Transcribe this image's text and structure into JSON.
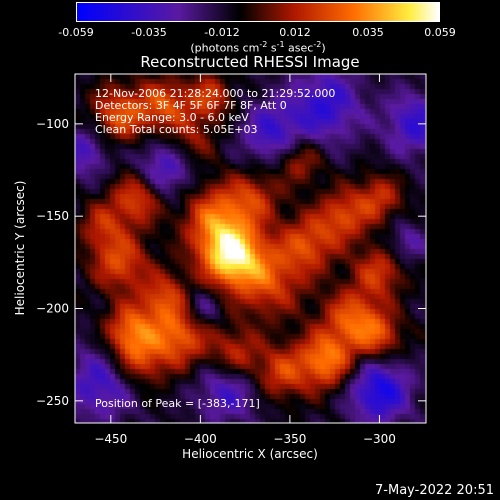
{
  "colorbar": {
    "ticks": [
      "-0.059",
      "-0.035",
      "-0.012",
      "0.012",
      "0.035",
      "0.059"
    ],
    "units_main": "(photons cm",
    "units_exp1": "-2",
    "units_s": " s",
    "units_exp2": "-1",
    "units_asec": " asec",
    "units_exp3": "-2",
    "units_close": ")"
  },
  "title": "Reconstructed RHESSI Image",
  "annotations": {
    "time": "12-Nov-2006 21:28:24.000 to 21:29:52.000",
    "detectors": "Detectors: 3F 4F 5F 6F 7F 8F, Att 0",
    "energy": "Energy Range: 3.0 - 6.0 keV",
    "clean": "Clean     Total counts: 5.05E+03",
    "peak": "Position of Peak = [-383,-171]"
  },
  "footer": "7-May-2022 20:51",
  "chart_data": {
    "type": "heatmap",
    "title": "Reconstructed RHESSI Image",
    "xlabel": "Heliocentric X (arcsec)",
    "ylabel": "Heliocentric Y (arcsec)",
    "xlim": [
      -470,
      -274
    ],
    "ylim": [
      -262,
      -73
    ],
    "xticks": [
      -450,
      -400,
      -350,
      -300
    ],
    "yticks": [
      -100,
      -150,
      -200,
      -250
    ],
    "colorbar_range": [
      -0.059,
      0.059
    ],
    "colormap": [
      "#0000ff",
      "#5a1aa0",
      "#000000",
      "#b01800",
      "#ff6a00",
      "#ffee40",
      "#ffffff"
    ],
    "peak": {
      "x": -383,
      "y": -171
    },
    "blobs": [
      {
        "x": -383,
        "y": -171,
        "amp": 0.059,
        "sigma": 12
      },
      {
        "x": -392,
        "y": -150,
        "amp": 0.034,
        "sigma": 13
      },
      {
        "x": -362,
        "y": -185,
        "amp": 0.03,
        "sigma": 14
      },
      {
        "x": -445,
        "y": -95,
        "amp": 0.034,
        "sigma": 11
      },
      {
        "x": -420,
        "y": -90,
        "amp": 0.032,
        "sigma": 10
      },
      {
        "x": -395,
        "y": -86,
        "amp": 0.028,
        "sigma": 9
      },
      {
        "x": -435,
        "y": -140,
        "amp": 0.034,
        "sigma": 10
      },
      {
        "x": -445,
        "y": -175,
        "amp": 0.032,
        "sigma": 11
      },
      {
        "x": -420,
        "y": -195,
        "amp": 0.03,
        "sigma": 10
      },
      {
        "x": -410,
        "y": -215,
        "amp": 0.034,
        "sigma": 11
      },
      {
        "x": -435,
        "y": -225,
        "amp": 0.036,
        "sigma": 12
      },
      {
        "x": -380,
        "y": -225,
        "amp": 0.026,
        "sigma": 10
      },
      {
        "x": -355,
        "y": -235,
        "amp": 0.028,
        "sigma": 10
      },
      {
        "x": -330,
        "y": -228,
        "amp": 0.042,
        "sigma": 11
      },
      {
        "x": -315,
        "y": -205,
        "amp": 0.034,
        "sigma": 11
      },
      {
        "x": -300,
        "y": -215,
        "amp": 0.028,
        "sigma": 9
      },
      {
        "x": -340,
        "y": -165,
        "amp": 0.03,
        "sigma": 11
      },
      {
        "x": -320,
        "y": -150,
        "amp": 0.03,
        "sigma": 10
      },
      {
        "x": -300,
        "y": -140,
        "amp": 0.026,
        "sigma": 9
      },
      {
        "x": -345,
        "y": -120,
        "amp": 0.024,
        "sigma": 9
      },
      {
        "x": -300,
        "y": -180,
        "amp": 0.028,
        "sigma": 10
      },
      {
        "x": -370,
        "y": -140,
        "amp": 0.024,
        "sigma": 10
      },
      {
        "x": -440,
        "y": -210,
        "amp": 0.026,
        "sigma": 9
      },
      {
        "x": -455,
        "y": -155,
        "amp": 0.022,
        "sigma": 9
      },
      {
        "x": -405,
        "y": -110,
        "amp": 0.02,
        "sigma": 9
      },
      {
        "x": -455,
        "y": -240,
        "amp": -0.03,
        "sigma": 14
      },
      {
        "x": -300,
        "y": -245,
        "amp": -0.04,
        "sigma": 12
      },
      {
        "x": -330,
        "y": -90,
        "amp": -0.032,
        "sigma": 14
      },
      {
        "x": -420,
        "y": -125,
        "amp": -0.028,
        "sigma": 12
      },
      {
        "x": -360,
        "y": -105,
        "amp": -0.028,
        "sigma": 12
      },
      {
        "x": -385,
        "y": -245,
        "amp": -0.026,
        "sigma": 12
      },
      {
        "x": -465,
        "y": -115,
        "amp": -0.024,
        "sigma": 10
      },
      {
        "x": -280,
        "y": -100,
        "amp": -0.03,
        "sigma": 12
      },
      {
        "x": -400,
        "y": -200,
        "amp": -0.02,
        "sigma": 8
      },
      {
        "x": -285,
        "y": -165,
        "amp": -0.018,
        "sigma": 8
      }
    ]
  }
}
